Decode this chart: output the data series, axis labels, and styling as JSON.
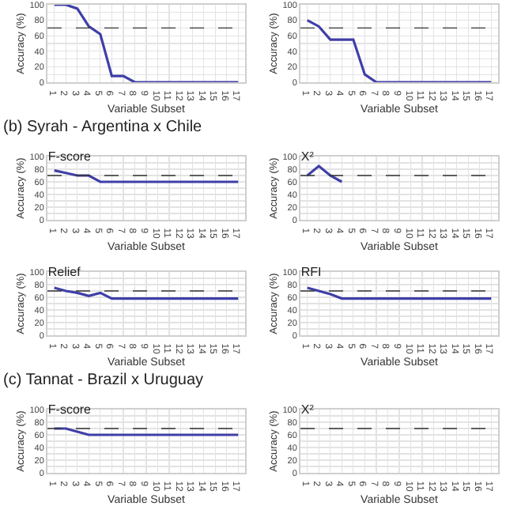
{
  "chart_data": [
    {
      "type": "line",
      "xlabel": "Variable Subset",
      "ylabel": "Accuracy (%)",
      "categories": [
        "1",
        "2",
        "3",
        "4",
        "5",
        "6",
        "7",
        "8",
        "9",
        "10",
        "11",
        "12",
        "13",
        "14",
        "15",
        "16",
        "17"
      ],
      "series": [
        {
          "color": "#3f3fa8",
          "values": [
            100,
            100,
            95,
            72,
            62,
            8,
            8,
            0,
            0,
            0,
            0,
            0,
            0,
            0,
            0,
            0,
            0
          ]
        }
      ],
      "ylim": [
        0,
        100
      ],
      "yticks": [
        0,
        {
          "value": 10,
          "label": null
        },
        20,
        {
          "value": 30,
          "label": null
        },
        40,
        {
          "value": 50,
          "label": null
        },
        60,
        {
          "value": 70,
          "label": null
        },
        80,
        {
          "value": 90,
          "label": null
        },
        100
      ],
      "grid": true,
      "ref_lines": [
        {
          "axis": "y",
          "value": 70,
          "line_style": "dashed",
          "color": "#333333"
        }
      ],
      "marker": "none",
      "line_style": "solid"
    },
    {
      "type": "line",
      "xlabel": "Variable Subset",
      "ylabel": "Accuracy (%)",
      "categories": [
        "1",
        "2",
        "3",
        "4",
        "5",
        "6",
        "7",
        "8",
        "9",
        "10",
        "11",
        "12",
        "13",
        "14",
        "15",
        "16",
        "17"
      ],
      "series": [
        {
          "color": "#3f3fa8",
          "values": [
            80,
            72,
            55,
            55,
            55,
            10,
            0,
            0,
            0,
            0,
            0,
            0,
            0,
            0,
            0,
            0,
            0
          ]
        }
      ],
      "ylim": [
        0,
        100
      ],
      "yticks": [
        0,
        {
          "value": 10,
          "label": null
        },
        20,
        {
          "value": 30,
          "label": null
        },
        40,
        {
          "value": 50,
          "label": null
        },
        60,
        {
          "value": 70,
          "label": null
        },
        80,
        {
          "value": 90,
          "label": null
        },
        100
      ],
      "grid": true,
      "ref_lines": [
        {
          "axis": "y",
          "value": 70,
          "line_style": "dashed",
          "color": "#333333"
        }
      ],
      "marker": "none",
      "line_style": "solid"
    },
    {
      "type": "line",
      "subtitle": "(b) Syrah - Argentina x Chile",
      "title": "F-score",
      "xlabel": "Variable Subset",
      "ylabel": "Accuracy (%)",
      "categories": [
        "1",
        "2",
        "3",
        "4",
        "5",
        "6",
        "7",
        "8",
        "9",
        "10",
        "11",
        "12",
        "13",
        "14",
        "15",
        "16",
        "17"
      ],
      "series": [
        {
          "color": "#3f3fa8",
          "values": [
            78,
            74,
            70,
            70,
            60,
            60,
            60,
            60,
            60,
            60,
            60,
            60,
            60,
            60,
            60,
            60,
            60
          ]
        }
      ],
      "ylim": [
        0,
        100
      ],
      "yticks": [
        0,
        {
          "value": 10,
          "label": null
        },
        20,
        {
          "value": 30,
          "label": null
        },
        40,
        {
          "value": 50,
          "label": null
        },
        60,
        {
          "value": 70,
          "label": null
        },
        80,
        {
          "value": 90,
          "label": null
        },
        100
      ],
      "grid": true,
      "ref_lines": [
        {
          "axis": "y",
          "value": 70,
          "line_style": "dashed",
          "color": "#333333"
        }
      ],
      "marker": "none",
      "line_style": "solid"
    },
    {
      "type": "line",
      "title": "X²",
      "xlabel": "Variable Subset",
      "ylabel": "Accuracy (%)",
      "categories": [
        "1",
        "2",
        "3",
        "4",
        "5",
        "6",
        "7",
        "8",
        "9",
        "10",
        "11",
        "12",
        "13",
        "14",
        "15",
        "16",
        "17"
      ],
      "series": [
        {
          "color": "#3f3fa8",
          "values": [
            70,
            85,
            70,
            60,
            null,
            null,
            null,
            null,
            null,
            null,
            null,
            null,
            null,
            null,
            null,
            null,
            null
          ]
        }
      ],
      "ylim": [
        0,
        100
      ],
      "yticks": [
        0,
        {
          "value": 10,
          "label": null
        },
        20,
        {
          "value": 30,
          "label": null
        },
        40,
        {
          "value": 50,
          "label": null
        },
        60,
        {
          "value": 70,
          "label": null
        },
        80,
        {
          "value": 90,
          "label": null
        },
        100
      ],
      "grid": true,
      "ref_lines": [
        {
          "axis": "y",
          "value": 70,
          "line_style": "dashed",
          "color": "#333333"
        }
      ],
      "marker": "none",
      "line_style": "solid"
    },
    {
      "type": "line",
      "title": "Relief",
      "xlabel": "Variable Subset",
      "ylabel": "Accuracy (%)",
      "categories": [
        "1",
        "2",
        "3",
        "4",
        "5",
        "6",
        "7",
        "8",
        "9",
        "10",
        "11",
        "12",
        "13",
        "14",
        "15",
        "16",
        "17"
      ],
      "series": [
        {
          "color": "#3f3fa8",
          "values": [
            75,
            70,
            67,
            62,
            67,
            58,
            58,
            58,
            58,
            58,
            58,
            58,
            58,
            58,
            58,
            58,
            58
          ]
        }
      ],
      "ylim": [
        0,
        100
      ],
      "yticks": [
        0,
        {
          "value": 10,
          "label": null
        },
        20,
        {
          "value": 30,
          "label": null
        },
        40,
        {
          "value": 50,
          "label": null
        },
        60,
        {
          "value": 70,
          "label": null
        },
        80,
        {
          "value": 90,
          "label": null
        },
        100
      ],
      "grid": true,
      "ref_lines": [
        {
          "axis": "y",
          "value": 70,
          "line_style": "dashed",
          "color": "#333333"
        }
      ],
      "marker": "none",
      "line_style": "solid"
    },
    {
      "type": "line",
      "title": "RFI",
      "xlabel": "Variable Subset",
      "ylabel": "Accuracy (%)",
      "categories": [
        "1",
        "2",
        "3",
        "4",
        "5",
        "6",
        "7",
        "8",
        "9",
        "10",
        "11",
        "12",
        "13",
        "14",
        "15",
        "16",
        "17"
      ],
      "series": [
        {
          "color": "#3f3fa8",
          "values": [
            75,
            70,
            65,
            58,
            58,
            58,
            58,
            58,
            58,
            58,
            58,
            58,
            58,
            58,
            58,
            58,
            58
          ]
        }
      ],
      "ylim": [
        0,
        100
      ],
      "yticks": [
        0,
        {
          "value": 10,
          "label": null
        },
        20,
        {
          "value": 30,
          "label": null
        },
        40,
        {
          "value": 50,
          "label": null
        },
        60,
        {
          "value": 70,
          "label": null
        },
        80,
        {
          "value": 90,
          "label": null
        },
        100
      ],
      "grid": true,
      "ref_lines": [
        {
          "axis": "y",
          "value": 70,
          "line_style": "dashed",
          "color": "#333333"
        }
      ],
      "marker": "none",
      "line_style": "solid"
    },
    {
      "type": "line",
      "subtitle": "(c) Tannat - Brazil x Uruguay",
      "title": "F-score",
      "xlabel": "Variable Subset",
      "ylabel": "Accuracy (%)",
      "categories": [
        "1",
        "2",
        "3",
        "4",
        "5",
        "6",
        "7",
        "8",
        "9",
        "10",
        "11",
        "12",
        "13",
        "14",
        "15",
        "16",
        "17"
      ],
      "series": [
        {
          "color": "#3f3fa8",
          "values": [
            70,
            70,
            65,
            60,
            60,
            60,
            60,
            60,
            60,
            60,
            60,
            60,
            60,
            60,
            60,
            60,
            60
          ]
        }
      ],
      "ylim": [
        0,
        100
      ],
      "yticks": [
        0,
        {
          "value": 10,
          "label": null
        },
        20,
        {
          "value": 30,
          "label": null
        },
        40,
        {
          "value": 50,
          "label": null
        },
        60,
        {
          "value": 70,
          "label": null
        },
        80,
        {
          "value": 90,
          "label": null
        },
        100
      ],
      "grid": true,
      "ref_lines": [
        {
          "axis": "y",
          "value": 70,
          "line_style": "dashed",
          "color": "#333333"
        }
      ],
      "marker": "none",
      "line_style": "solid"
    },
    {
      "type": "line",
      "title": "X²",
      "xlabel": "Variable Subset",
      "ylabel": "Accuracy (%)",
      "categories": [
        "1",
        "2",
        "3",
        "4",
        "5",
        "6",
        "7",
        "8",
        "9",
        "10",
        "11",
        "12",
        "13",
        "14",
        "15",
        "16",
        "17"
      ],
      "ylim": [
        0,
        100
      ],
      "yticks": [
        0,
        {
          "value": 10,
          "label": null
        },
        20,
        {
          "value": 30,
          "label": null
        },
        40,
        {
          "value": 50,
          "label": null
        },
        60,
        {
          "value": 70,
          "label": null
        },
        80,
        {
          "value": 90,
          "label": null
        },
        100
      ],
      "grid": true,
      "ref_lines": [
        {
          "axis": "y",
          "value": 70,
          "line_style": "dashed",
          "color": "#333333"
        }
      ]
    }
  ]
}
